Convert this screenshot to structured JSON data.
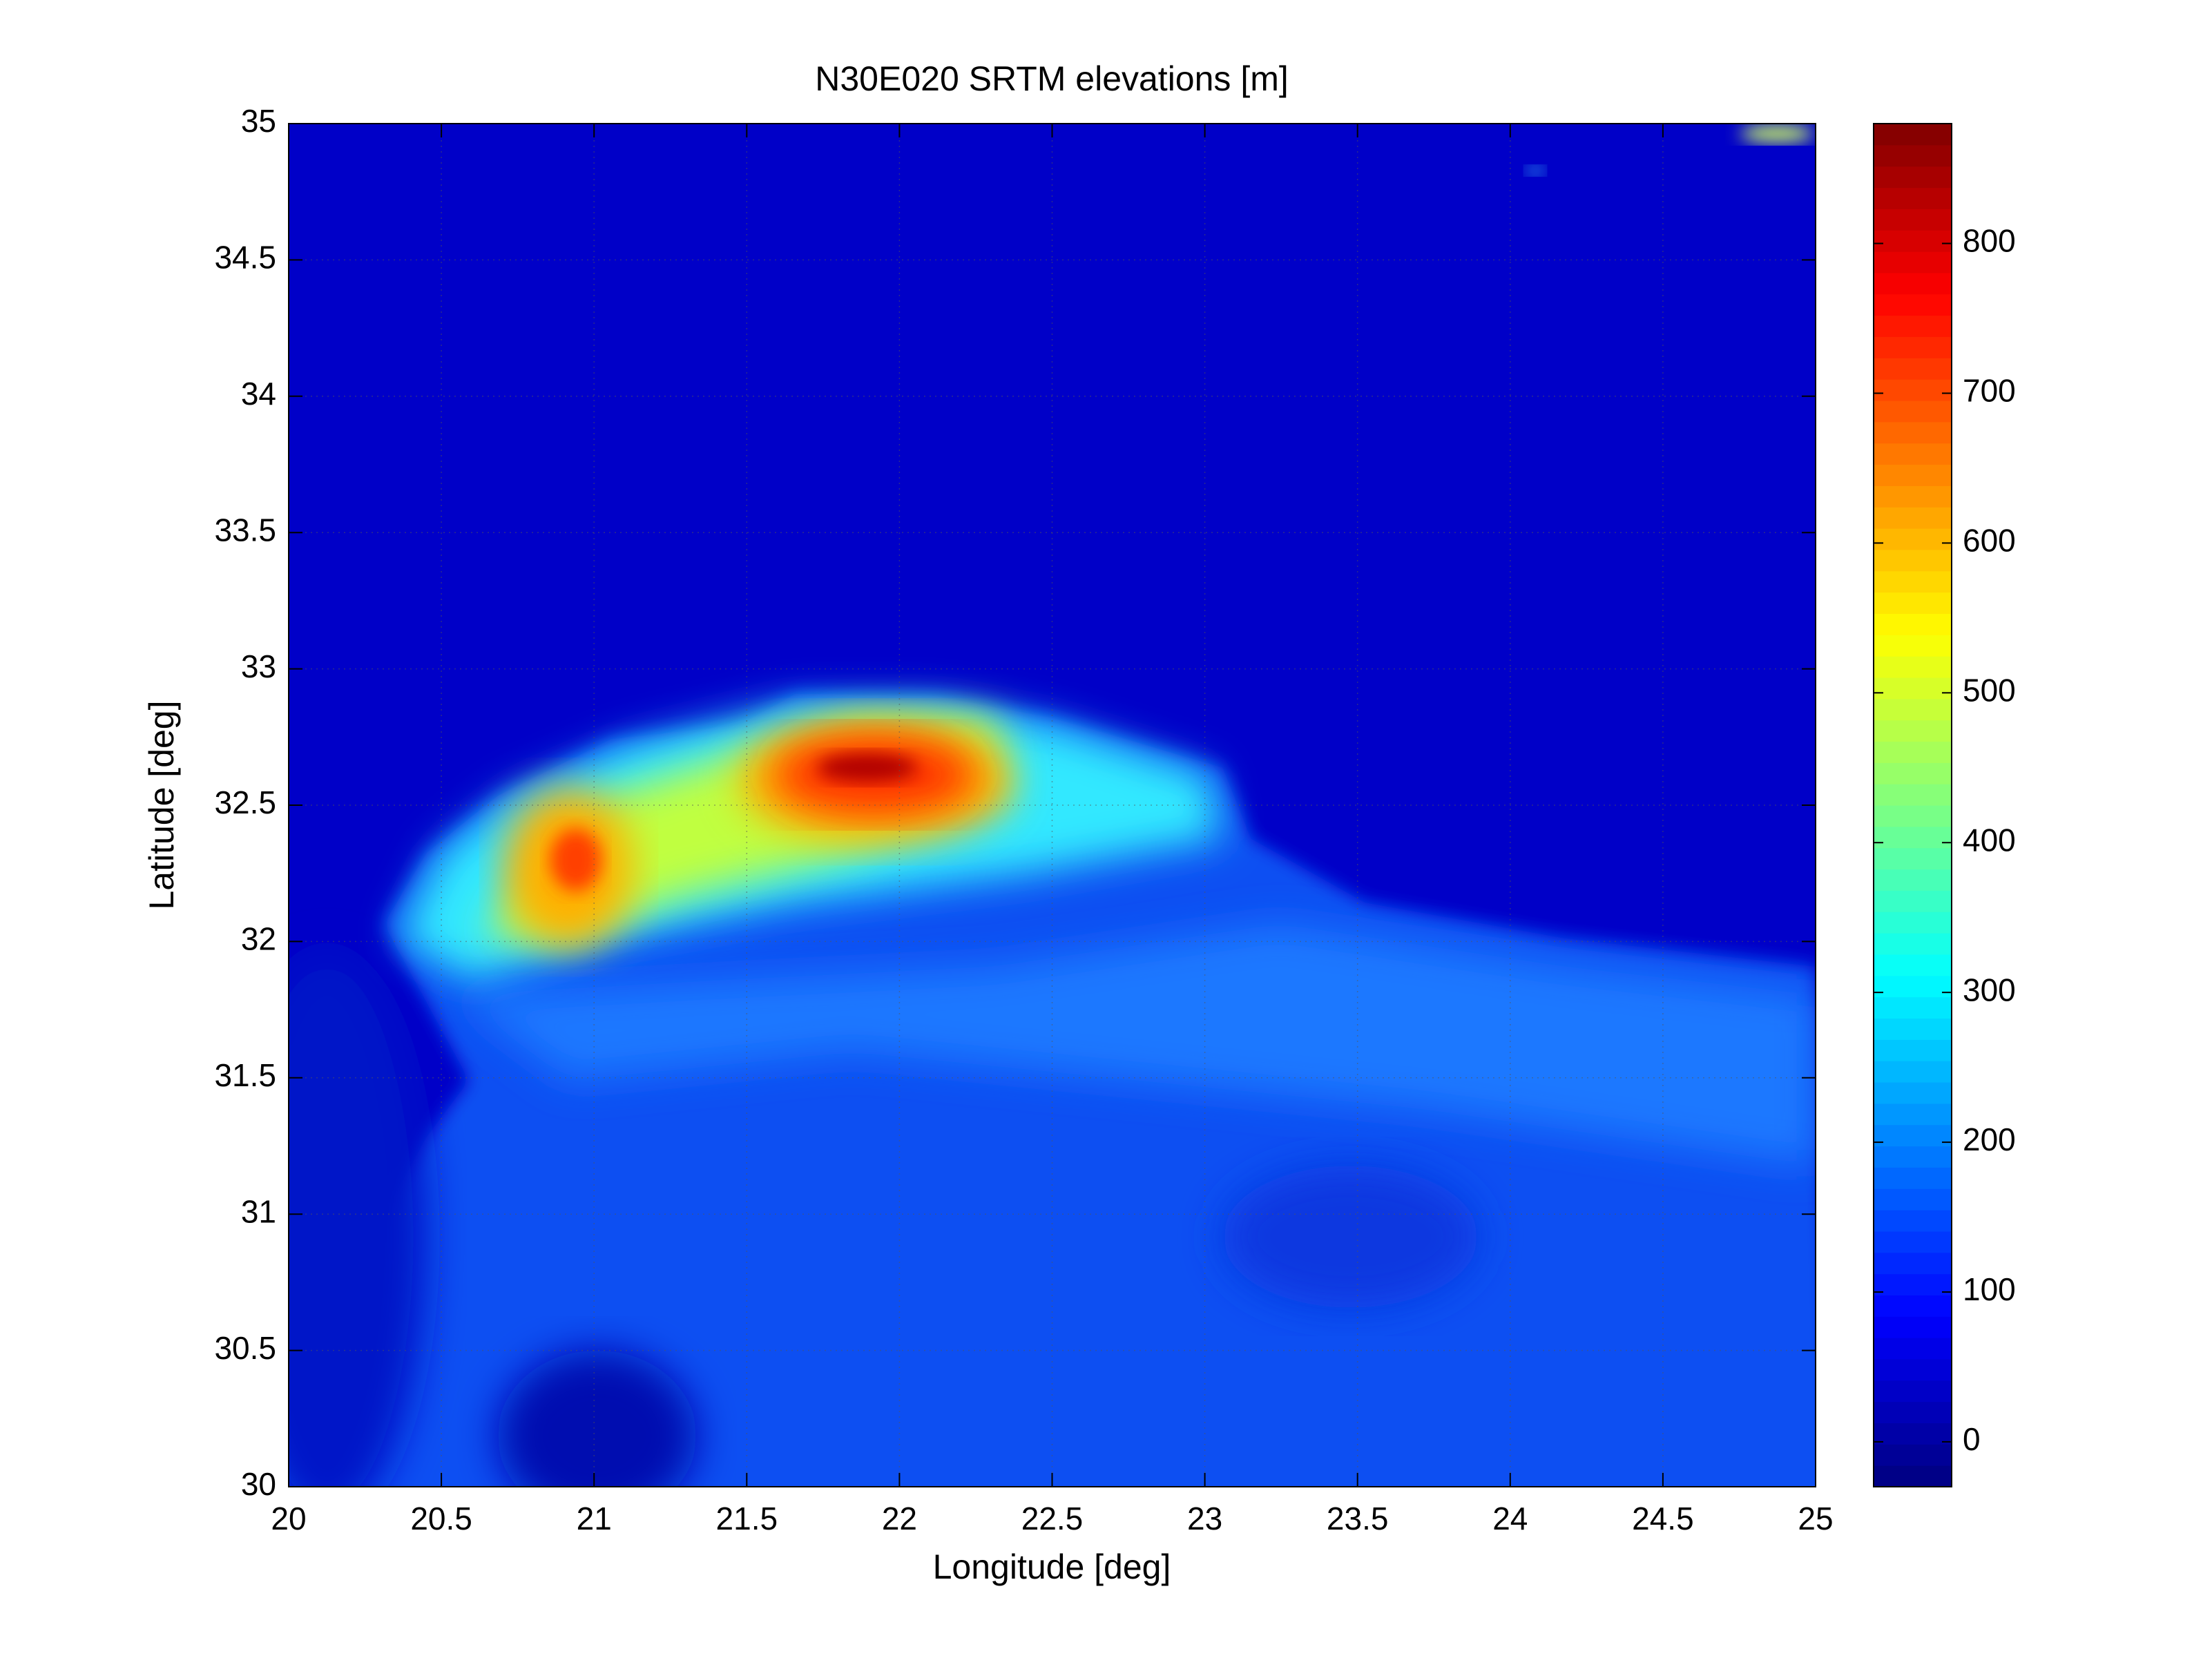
{
  "chart_data": {
    "type": "heatmap",
    "title": "N30E020 SRTM elevations [m]",
    "x_label": "Longitude [deg]",
    "y_label": "Latitude [deg]",
    "xlim": [
      20,
      25
    ],
    "ylim": [
      30,
      35
    ],
    "xticks": [
      20,
      20.5,
      21,
      21.5,
      22,
      22.5,
      23,
      23.5,
      24,
      24.5,
      25
    ],
    "yticks": [
      30,
      30.5,
      31,
      31.5,
      32,
      32.5,
      33,
      33.5,
      34,
      34.5,
      35
    ],
    "grid": true,
    "colormap": "jet",
    "colorbar": {
      "clim": [
        -30,
        880
      ],
      "ticks": [
        0,
        100,
        200,
        300,
        400,
        500,
        600,
        700,
        800
      ]
    }
  }
}
